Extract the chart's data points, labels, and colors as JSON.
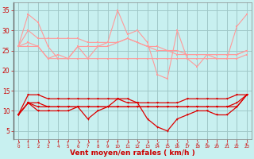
{
  "bg_color": "#c8f0f0",
  "grid_color": "#a0c8c8",
  "xlabel": "Vent moyen/en rafales ( km/h )",
  "xlabel_color": "#cc0000",
  "tick_color": "#cc0000",
  "ylim": [
    3,
    37
  ],
  "xlim": [
    -0.5,
    23.5
  ],
  "yticks": [
    5,
    10,
    15,
    20,
    25,
    30,
    35
  ],
  "xticks": [
    0,
    1,
    2,
    3,
    4,
    5,
    6,
    7,
    8,
    9,
    10,
    11,
    12,
    13,
    14,
    15,
    16,
    17,
    18,
    19,
    20,
    21,
    22,
    23
  ],
  "line_light": "#ff9999",
  "line_dark": "#dd0000",
  "series_light": [
    [
      26,
      34,
      32,
      26,
      23,
      23,
      26,
      23,
      26,
      27,
      35,
      29,
      30,
      27,
      19,
      18,
      30,
      23,
      21,
      24,
      23,
      23,
      31,
      34
    ],
    [
      26,
      30,
      28,
      28,
      28,
      28,
      28,
      27,
      27,
      27,
      27,
      28,
      27,
      26,
      26,
      25,
      25,
      24,
      24,
      24,
      24,
      24,
      24,
      25
    ],
    [
      26,
      27,
      26,
      23,
      24,
      23,
      26,
      26,
      26,
      26,
      27,
      28,
      27,
      26,
      25,
      25,
      24,
      24,
      24,
      24,
      24,
      24,
      24,
      25
    ],
    [
      26,
      26,
      26,
      23,
      23,
      23,
      23,
      23,
      23,
      23,
      23,
      23,
      23,
      23,
      23,
      23,
      23,
      23,
      23,
      23,
      23,
      23,
      23,
      24
    ]
  ],
  "series_dark": [
    [
      9,
      12,
      10,
      10,
      10,
      10,
      11,
      8,
      10,
      11,
      13,
      12,
      12,
      8,
      6,
      5,
      8,
      9,
      10,
      10,
      9,
      9,
      11,
      14
    ],
    [
      9,
      14,
      14,
      13,
      13,
      13,
      13,
      13,
      13,
      13,
      13,
      13,
      12,
      12,
      12,
      12,
      12,
      13,
      13,
      13,
      13,
      13,
      14,
      14
    ],
    [
      9,
      12,
      12,
      11,
      11,
      11,
      11,
      11,
      11,
      11,
      11,
      11,
      11,
      11,
      11,
      11,
      11,
      11,
      11,
      11,
      11,
      11,
      11,
      14
    ],
    [
      9,
      12,
      11,
      11,
      11,
      11,
      11,
      11,
      11,
      11,
      11,
      11,
      11,
      11,
      11,
      11,
      11,
      11,
      11,
      11,
      11,
      11,
      12,
      14
    ]
  ],
  "arrows": [
    "↗",
    "↑",
    "↗",
    "↗",
    "↑",
    "↑",
    "↗",
    "↗",
    "↑",
    "↑",
    "↑",
    "↗",
    "↗",
    "↗",
    "↙",
    "↓",
    "↙",
    "↙",
    "↙",
    "↙",
    "↓",
    "↓",
    "↓",
    "↙"
  ]
}
